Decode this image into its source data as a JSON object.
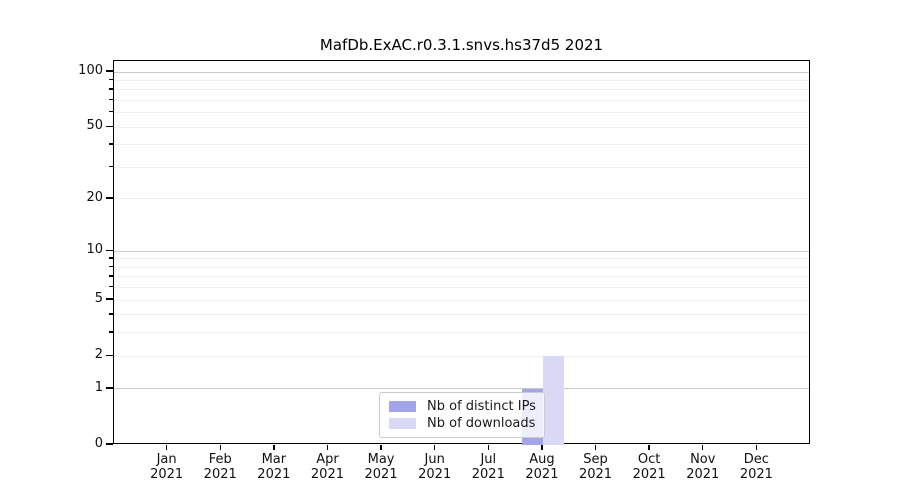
{
  "chart_data": {
    "type": "bar",
    "title": "MafDb.ExAC.r0.3.1.snvs.hs37d5 2021",
    "x_categories": [
      "Jan",
      "Feb",
      "Mar",
      "Apr",
      "May",
      "Jun",
      "Jul",
      "Aug",
      "Sep",
      "Oct",
      "Nov",
      "Dec"
    ],
    "x_sublabel": "2021",
    "series": [
      {
        "name": "Nb of distinct IPs",
        "color": "#a4a4ea",
        "values": [
          0,
          0,
          0,
          0,
          0,
          0,
          0,
          1,
          0,
          0,
          0,
          0
        ]
      },
      {
        "name": "Nb of downloads",
        "color": "#d9d9f6",
        "values": [
          0,
          0,
          0,
          0,
          0,
          0,
          0,
          2,
          0,
          0,
          0,
          0
        ]
      }
    ],
    "y_scale": "log1p",
    "y_ticks": [
      0,
      1,
      2,
      5,
      10,
      20,
      50,
      100
    ],
    "y_minor_tick_values": [
      3,
      4,
      6,
      7,
      8,
      9,
      30,
      40,
      60,
      70,
      80,
      90
    ],
    "y_major_grid_values": [
      1,
      10,
      100
    ],
    "y_minor_grid_values": [
      2,
      3,
      4,
      5,
      6,
      7,
      8,
      9,
      20,
      30,
      40,
      50,
      60,
      70,
      80,
      90
    ],
    "ylim": [
      0,
      117
    ],
    "grid": true,
    "legend": {
      "position": "lower center",
      "entries": [
        "Nb of distinct IPs",
        "Nb of downloads"
      ]
    }
  },
  "colors": {
    "distinct_ips": "#a4a4ea",
    "downloads": "#d9d9f6",
    "major_grid": "#c9c9c9",
    "minor_grid": "#f0f0f0",
    "axis": "#000000",
    "background": "#ffffff"
  }
}
